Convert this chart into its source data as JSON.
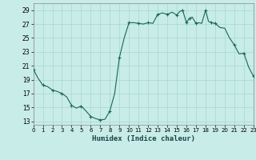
{
  "xlabel": "Humidex (Indice chaleur)",
  "bg_color": "#c8ece8",
  "grid_color": "#a8d8d0",
  "line_color": "#1a6655",
  "marker_color": "#1a6655",
  "x_values": [
    0,
    0.5,
    1,
    1.5,
    2,
    2.5,
    3,
    3.5,
    4,
    4.5,
    5,
    5.5,
    6,
    6.5,
    7,
    7.5,
    8,
    8.5,
    9,
    9.5,
    10,
    10.5,
    11,
    11.5,
    12,
    12.5,
    13,
    13.5,
    14,
    14.5,
    15,
    15.3,
    15.6,
    16,
    16.3,
    16.6,
    17,
    17.3,
    17.6,
    18,
    18.3,
    18.6,
    19,
    19.5,
    20,
    20.5,
    21,
    21.5,
    22,
    22.5,
    23
  ],
  "y_values": [
    20.5,
    19.2,
    18.2,
    18.0,
    17.5,
    17.3,
    17.0,
    16.5,
    15.3,
    14.9,
    15.2,
    14.5,
    13.7,
    13.4,
    13.2,
    13.3,
    14.5,
    17.0,
    22.2,
    25.0,
    27.2,
    27.2,
    27.1,
    27.0,
    27.2,
    27.1,
    28.4,
    28.6,
    28.4,
    28.7,
    28.3,
    28.8,
    29.0,
    27.2,
    27.8,
    28.0,
    27.1,
    27.2,
    27.1,
    29.0,
    27.4,
    27.2,
    27.1,
    26.5,
    26.4,
    25.0,
    24.0,
    22.7,
    22.8,
    20.8,
    19.5
  ],
  "marker_x": [
    0,
    1,
    2,
    3,
    4,
    5,
    6,
    7,
    8,
    9,
    10,
    11,
    12,
    13,
    14,
    15,
    15.6,
    16,
    16.3,
    17,
    18,
    18.6,
    19,
    21,
    22,
    23
  ],
  "marker_y": [
    20.5,
    18.2,
    17.5,
    17.0,
    15.3,
    15.2,
    13.7,
    13.2,
    14.5,
    22.2,
    27.2,
    27.1,
    27.2,
    28.4,
    28.4,
    28.3,
    29.0,
    27.2,
    27.8,
    27.1,
    29.0,
    27.2,
    27.1,
    24.0,
    22.8,
    19.5
  ],
  "xlim": [
    0,
    23
  ],
  "ylim": [
    12.5,
    30.0
  ],
  "yticks": [
    13,
    15,
    17,
    19,
    21,
    23,
    25,
    27,
    29
  ],
  "xticks": [
    0,
    1,
    2,
    3,
    4,
    5,
    6,
    7,
    8,
    9,
    10,
    11,
    12,
    13,
    14,
    15,
    16,
    17,
    18,
    19,
    20,
    21,
    22,
    23
  ]
}
